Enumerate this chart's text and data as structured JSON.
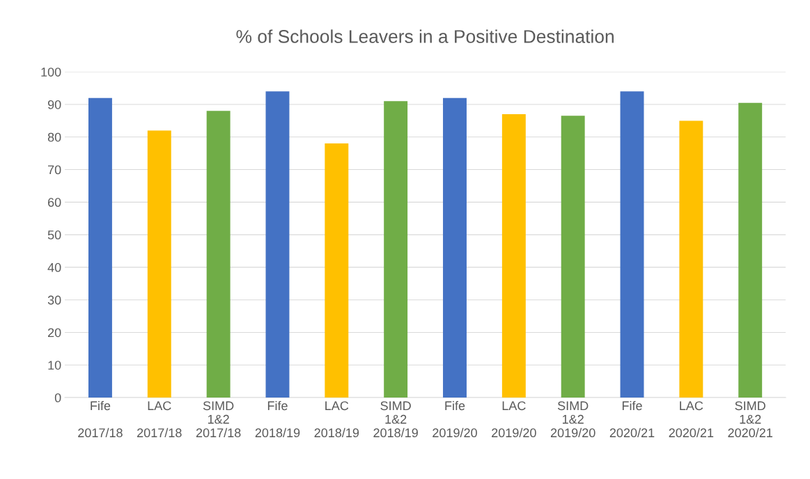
{
  "chart_data": {
    "type": "bar",
    "title": "% of Schools Leavers in a Positive Destination",
    "categories": [
      "Fife\n\n2017/18",
      "LAC\n\n2017/18",
      "SIMD\n1&2\n2017/18",
      "Fife\n\n2018/19",
      "LAC\n\n2018/19",
      "SIMD\n1&2\n2018/19",
      "Fife\n\n2019/20",
      "LAC\n\n2019/20",
      "SIMD\n1&2\n2019/20",
      "Fife\n\n2020/21",
      "LAC\n\n2020/21",
      "SIMD\n1&2\n2020/21"
    ],
    "values": [
      92,
      82,
      88,
      94,
      78,
      91,
      92,
      87,
      86.5,
      94,
      85,
      90.5
    ],
    "colors": [
      "#4472c4",
      "#ffc000",
      "#70ad47",
      "#4472c4",
      "#ffc000",
      "#70ad47",
      "#4472c4",
      "#ffc000",
      "#70ad47",
      "#4472c4",
      "#ffc000",
      "#70ad47"
    ],
    "ylim": [
      0,
      100
    ],
    "yticks": [
      0,
      10,
      20,
      30,
      40,
      50,
      60,
      70,
      80,
      90,
      100
    ],
    "grid": "y"
  }
}
